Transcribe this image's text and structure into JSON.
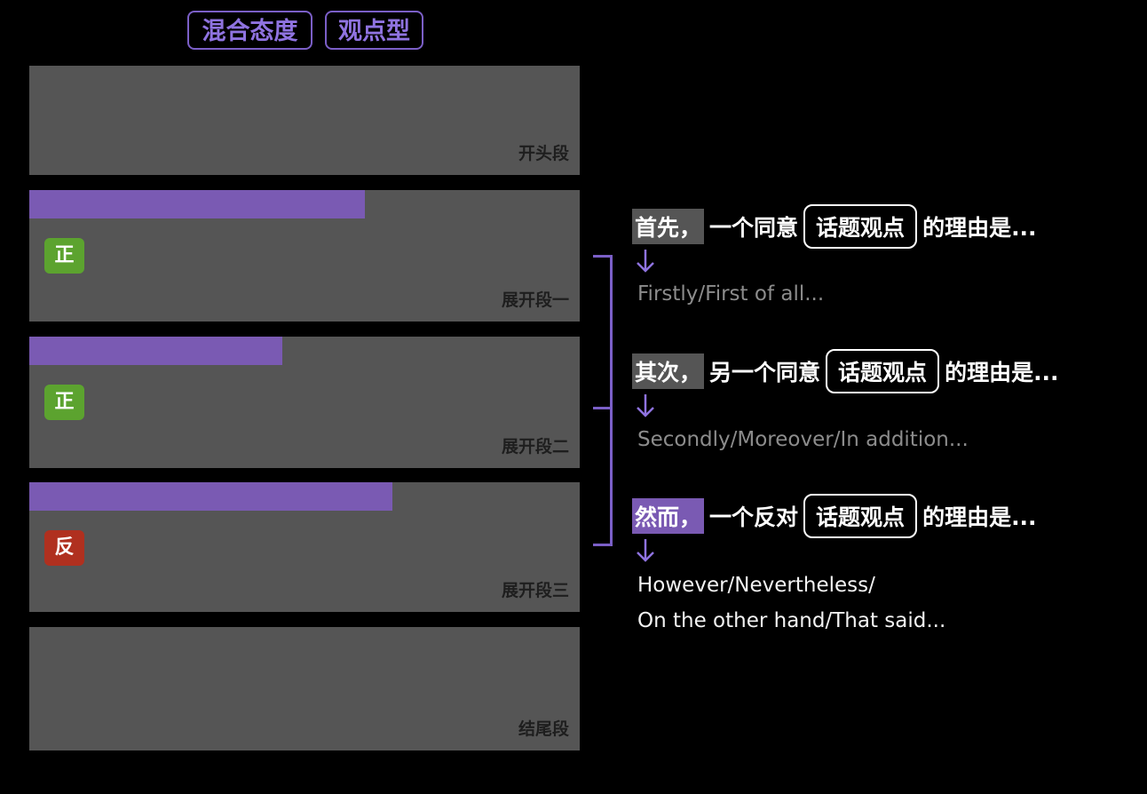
{
  "tags": [
    "混合态度",
    "观点型"
  ],
  "blocks": {
    "intro": {
      "label": "开头段"
    },
    "body1": {
      "label": "展开段一",
      "badge": "正",
      "bar_fraction": 0.61
    },
    "body2": {
      "label": "展开段二",
      "badge": "正",
      "bar_fraction": 0.46
    },
    "body3": {
      "label": "展开段三",
      "badge": "反",
      "bar_fraction": 0.66
    },
    "conclusion": {
      "label": "结尾段"
    }
  },
  "points": [
    {
      "lead": "首先",
      "comma": "，",
      "middle": "一个同意",
      "topic": "话题观点",
      "tail": "的理由是...",
      "english": [
        "Firstly/First of all..."
      ]
    },
    {
      "lead": "其次",
      "comma": "，",
      "middle": "另一个同意",
      "topic": "话题观点",
      "tail": "的理由是...",
      "english": [
        "Secondly/Moreover/In addition..."
      ]
    },
    {
      "lead": "然而",
      "comma": "，",
      "middle": "一个反对",
      "topic": "话题观点",
      "tail": "的理由是...",
      "english": [
        "However/Nevertheless/",
        "On the other hand/That said..."
      ]
    }
  ],
  "colors": {
    "accent": "#7a5ab3",
    "block": "#555555",
    "pro": "#5ca32f",
    "con": "#b0301f"
  }
}
